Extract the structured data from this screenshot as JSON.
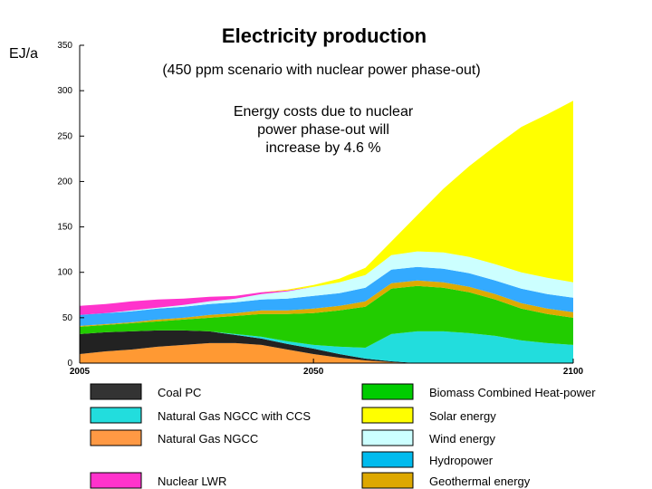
{
  "chart_data": {
    "type": "area",
    "title": "Electricity production",
    "subtitle": "(450 ppm scenario with nuclear power phase-out)",
    "annotation": [
      "Energy costs due to nuclear",
      "power phase-out will",
      "increase by 4.6 %"
    ],
    "ylabel": "EJ/a",
    "xlabel": "",
    "xlim": [
      2005,
      2100
    ],
    "ylim": [
      0,
      350
    ],
    "x_ticks": [
      2005,
      2050,
      2100
    ],
    "y_ticks": [
      0,
      50,
      100,
      150,
      200,
      250,
      300,
      350
    ],
    "stacked": true,
    "x": [
      2005,
      2010,
      2015,
      2020,
      2025,
      2030,
      2035,
      2040,
      2045,
      2050,
      2055,
      2060,
      2065,
      2070,
      2075,
      2080,
      2085,
      2090,
      2095,
      2100
    ],
    "series": [
      {
        "name": "Natural Gas NGCC",
        "color": "#ff9933",
        "values": [
          10,
          13,
          15,
          18,
          20,
          22,
          22,
          20,
          15,
          10,
          6,
          3,
          1,
          0,
          0,
          0,
          0,
          0,
          0,
          0
        ]
      },
      {
        "name": "Coal PC",
        "color": "#222222",
        "values": [
          22,
          21,
          20,
          18,
          16,
          13,
          9,
          7,
          6,
          6,
          4,
          2,
          1,
          0,
          0,
          0,
          0,
          0,
          0,
          0
        ]
      },
      {
        "name": "Natural Gas NGCC with CCS",
        "color": "#22dddd",
        "values": [
          0,
          0,
          0,
          0,
          0,
          0,
          1,
          2,
          3,
          4,
          8,
          12,
          30,
          35,
          35,
          33,
          30,
          25,
          22,
          20
        ]
      },
      {
        "name": "Biomass Combined Heat-power",
        "color": "#22cc00",
        "values": [
          8,
          8,
          9,
          10,
          12,
          15,
          20,
          25,
          30,
          35,
          40,
          45,
          50,
          50,
          48,
          45,
          40,
          35,
          32,
          30
        ]
      },
      {
        "name": "Geothermal energy",
        "color": "#ddaa00",
        "values": [
          1,
          1,
          1,
          2,
          2,
          3,
          3,
          4,
          4,
          5,
          5,
          6,
          6,
          6,
          6,
          6,
          6,
          6,
          6,
          6
        ]
      },
      {
        "name": "Hydropower",
        "color": "#33aaff",
        "values": [
          12,
          12,
          12,
          12,
          12,
          12,
          12,
          12,
          13,
          14,
          14,
          15,
          15,
          15,
          15,
          15,
          15,
          16,
          16,
          16
        ]
      },
      {
        "name": "Wind energy",
        "color": "#ccffff",
        "values": [
          0,
          0,
          1,
          1,
          2,
          3,
          4,
          6,
          8,
          10,
          12,
          14,
          16,
          17,
          18,
          18,
          18,
          18,
          18,
          17
        ]
      },
      {
        "name": "Nuclear LWR",
        "color": "#ff33cc",
        "values": [
          10,
          10,
          10,
          9,
          7,
          5,
          3,
          2,
          1,
          0,
          0,
          0,
          0,
          0,
          0,
          0,
          0,
          0,
          0,
          0
        ]
      },
      {
        "name": "Solar energy",
        "color": "#ffff00",
        "values": [
          0,
          0,
          0,
          0,
          0,
          0,
          0,
          0,
          1,
          2,
          4,
          8,
          15,
          40,
          70,
          100,
          130,
          160,
          180,
          200
        ]
      }
    ],
    "legend": {
      "placement": "bottom",
      "columns": [
        [
          "Coal PC",
          "Natural Gas NGCC with CCS",
          "Natural Gas NGCC",
          "",
          "Nuclear LWR"
        ],
        [
          "Biomass Combined Heat-power",
          "Solar energy",
          "Wind energy",
          "Hydropower",
          "Geothermal energy"
        ]
      ],
      "swatch_colors": {
        "Coal PC": "#333333",
        "Natural Gas NGCC with CCS": "#22dddd",
        "Natural Gas NGCC": "#ff9944",
        "Nuclear LWR": "#ff33cc",
        "Biomass Combined Heat-power": "#00cc00",
        "Solar energy": "#ffff00",
        "Wind energy": "#ccffff",
        "Hydropower": "#00bbee",
        "Geothermal energy": "#dda800"
      }
    },
    "grid": false
  }
}
